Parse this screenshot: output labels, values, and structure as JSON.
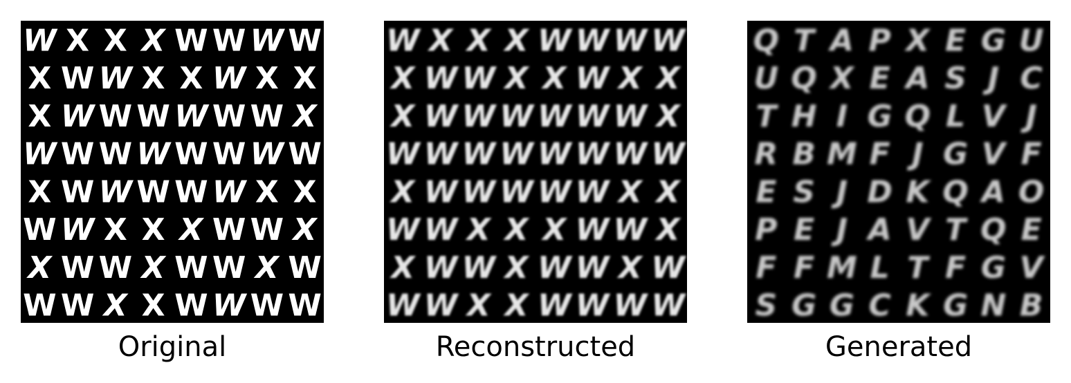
{
  "panels": [
    {
      "caption": "Original",
      "style": "sharp",
      "rows": [
        [
          "W",
          "X",
          "X",
          "X",
          "W",
          "W",
          "W",
          "W"
        ],
        [
          "X",
          "W",
          "W",
          "X",
          "X",
          "W",
          "X",
          "X"
        ],
        [
          "X",
          "W",
          "W",
          "W",
          "W",
          "W",
          "W",
          "X"
        ],
        [
          "W",
          "W",
          "W",
          "W",
          "W",
          "W",
          "W",
          "W"
        ],
        [
          "X",
          "W",
          "W",
          "W",
          "W",
          "W",
          "X",
          "X"
        ],
        [
          "W",
          "W",
          "X",
          "X",
          "X",
          "W",
          "W",
          "X"
        ],
        [
          "X",
          "W",
          "W",
          "X",
          "W",
          "W",
          "X",
          "W"
        ],
        [
          "W",
          "W",
          "X",
          "X",
          "W",
          "W",
          "W",
          "W"
        ]
      ]
    },
    {
      "caption": "Reconstructed",
      "style": "blur",
      "rows": [
        [
          "W",
          "X",
          "X",
          "X",
          "W",
          "W",
          "W",
          "W"
        ],
        [
          "X",
          "W",
          "W",
          "X",
          "X",
          "W",
          "X",
          "X"
        ],
        [
          "X",
          "W",
          "W",
          "W",
          "W",
          "W",
          "W",
          "X"
        ],
        [
          "W",
          "W",
          "W",
          "W",
          "W",
          "W",
          "W",
          "W"
        ],
        [
          "X",
          "W",
          "W",
          "W",
          "W",
          "W",
          "X",
          "X"
        ],
        [
          "W",
          "W",
          "X",
          "X",
          "X",
          "W",
          "W",
          "X"
        ],
        [
          "X",
          "W",
          "W",
          "X",
          "W",
          "W",
          "X",
          "W"
        ],
        [
          "W",
          "W",
          "X",
          "X",
          "W",
          "W",
          "W",
          "W"
        ]
      ]
    },
    {
      "caption": "Generated",
      "style": "faded",
      "rows": [
        [
          "Q",
          "T",
          "A",
          "P",
          "X",
          "E",
          "G",
          "U"
        ],
        [
          "U",
          "Q",
          "X",
          "E",
          "A",
          "S",
          "J",
          "C"
        ],
        [
          "T",
          "H",
          "I",
          "G",
          "Q",
          "L",
          "V",
          "J"
        ],
        [
          "R",
          "B",
          "M",
          "F",
          "J",
          "G",
          "V",
          "F"
        ],
        [
          "E",
          "S",
          "J",
          "D",
          "K",
          "Q",
          "A",
          "O"
        ],
        [
          "P",
          "E",
          "J",
          "A",
          "V",
          "T",
          "Q",
          "E"
        ],
        [
          "F",
          "F",
          "M",
          "L",
          "T",
          "F",
          "G",
          "V"
        ],
        [
          "S",
          "G",
          "G",
          "C",
          "K",
          "G",
          "N",
          "B"
        ]
      ]
    }
  ]
}
